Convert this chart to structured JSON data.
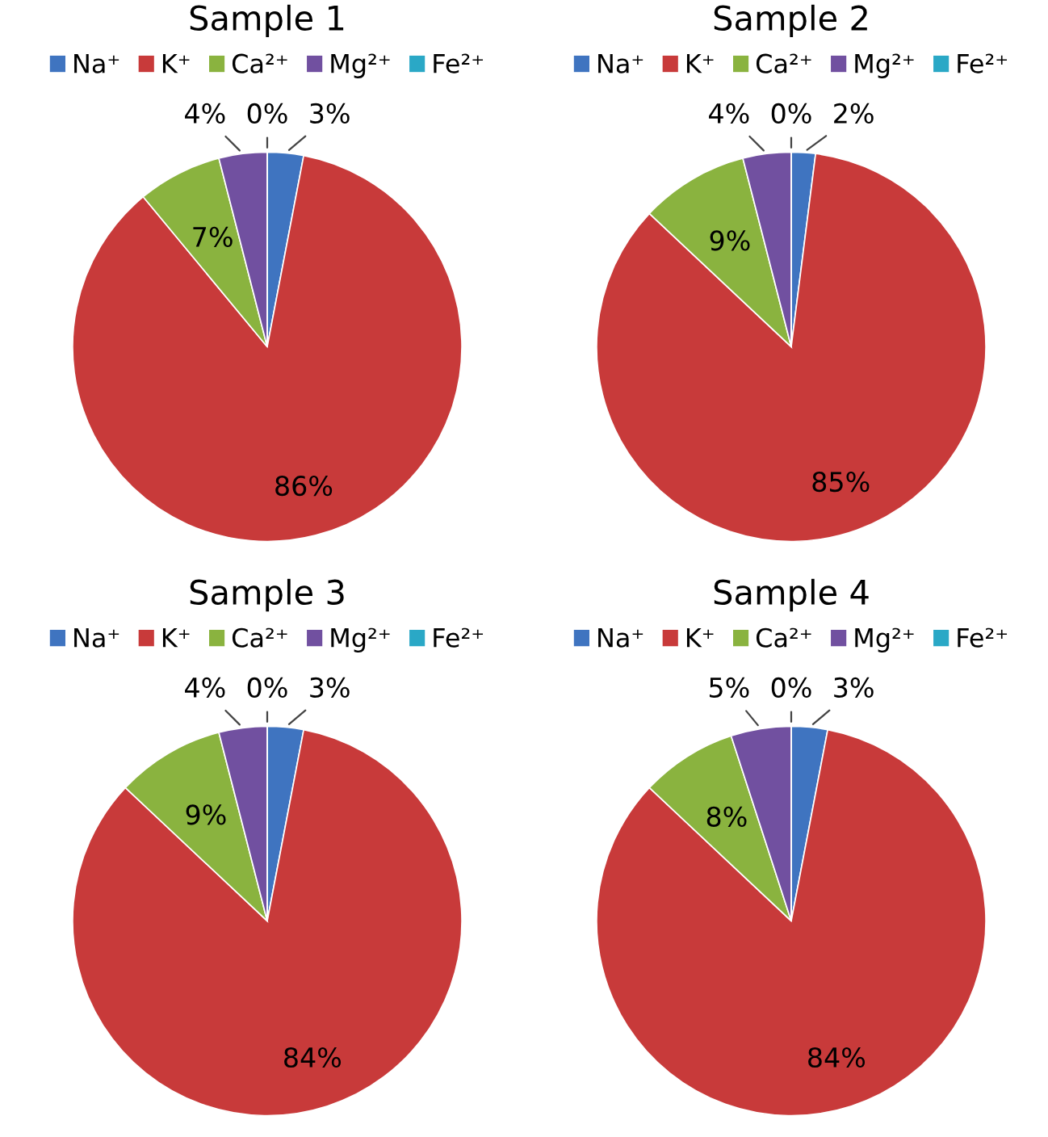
{
  "chart_data": [
    {
      "type": "pie",
      "title": "Sample 1",
      "categories": [
        "Na⁺",
        "K⁺",
        "Ca²⁺",
        "Mg²⁺",
        "Fe²⁺"
      ],
      "values": [
        3,
        86,
        7,
        4,
        0
      ],
      "value_labels": [
        "3%",
        "86%",
        "7%",
        "4%",
        "0%"
      ],
      "colors": [
        "#3f74c0",
        "#c83a3a",
        "#8ab33f",
        "#7150a0",
        "#2aa8c6"
      ],
      "legend": "top"
    },
    {
      "type": "pie",
      "title": "Sample 2",
      "categories": [
        "Na⁺",
        "K⁺",
        "Ca²⁺",
        "Mg²⁺",
        "Fe²⁺"
      ],
      "values": [
        2,
        85,
        9,
        4,
        0
      ],
      "value_labels": [
        "2%",
        "85%",
        "9%",
        "4%",
        "0%"
      ],
      "colors": [
        "#3f74c0",
        "#c83a3a",
        "#8ab33f",
        "#7150a0",
        "#2aa8c6"
      ],
      "legend": "top"
    },
    {
      "type": "pie",
      "title": "Sample 3",
      "categories": [
        "Na⁺",
        "K⁺",
        "Ca²⁺",
        "Mg²⁺",
        "Fe²⁺"
      ],
      "values": [
        3,
        84,
        9,
        4,
        0
      ],
      "value_labels": [
        "3%",
        "84%",
        "9%",
        "4%",
        "0%"
      ],
      "colors": [
        "#3f74c0",
        "#c83a3a",
        "#8ab33f",
        "#7150a0",
        "#2aa8c6"
      ],
      "legend": "top"
    },
    {
      "type": "pie",
      "title": "Sample 4",
      "categories": [
        "Na⁺",
        "K⁺",
        "Ca²⁺",
        "Mg²⁺",
        "Fe²⁺"
      ],
      "values": [
        3,
        84,
        8,
        5,
        0
      ],
      "value_labels": [
        "3%",
        "84%",
        "8%",
        "5%",
        "0%"
      ],
      "colors": [
        "#3f74c0",
        "#c83a3a",
        "#8ab33f",
        "#7150a0",
        "#2aa8c6"
      ],
      "legend": "top"
    }
  ]
}
